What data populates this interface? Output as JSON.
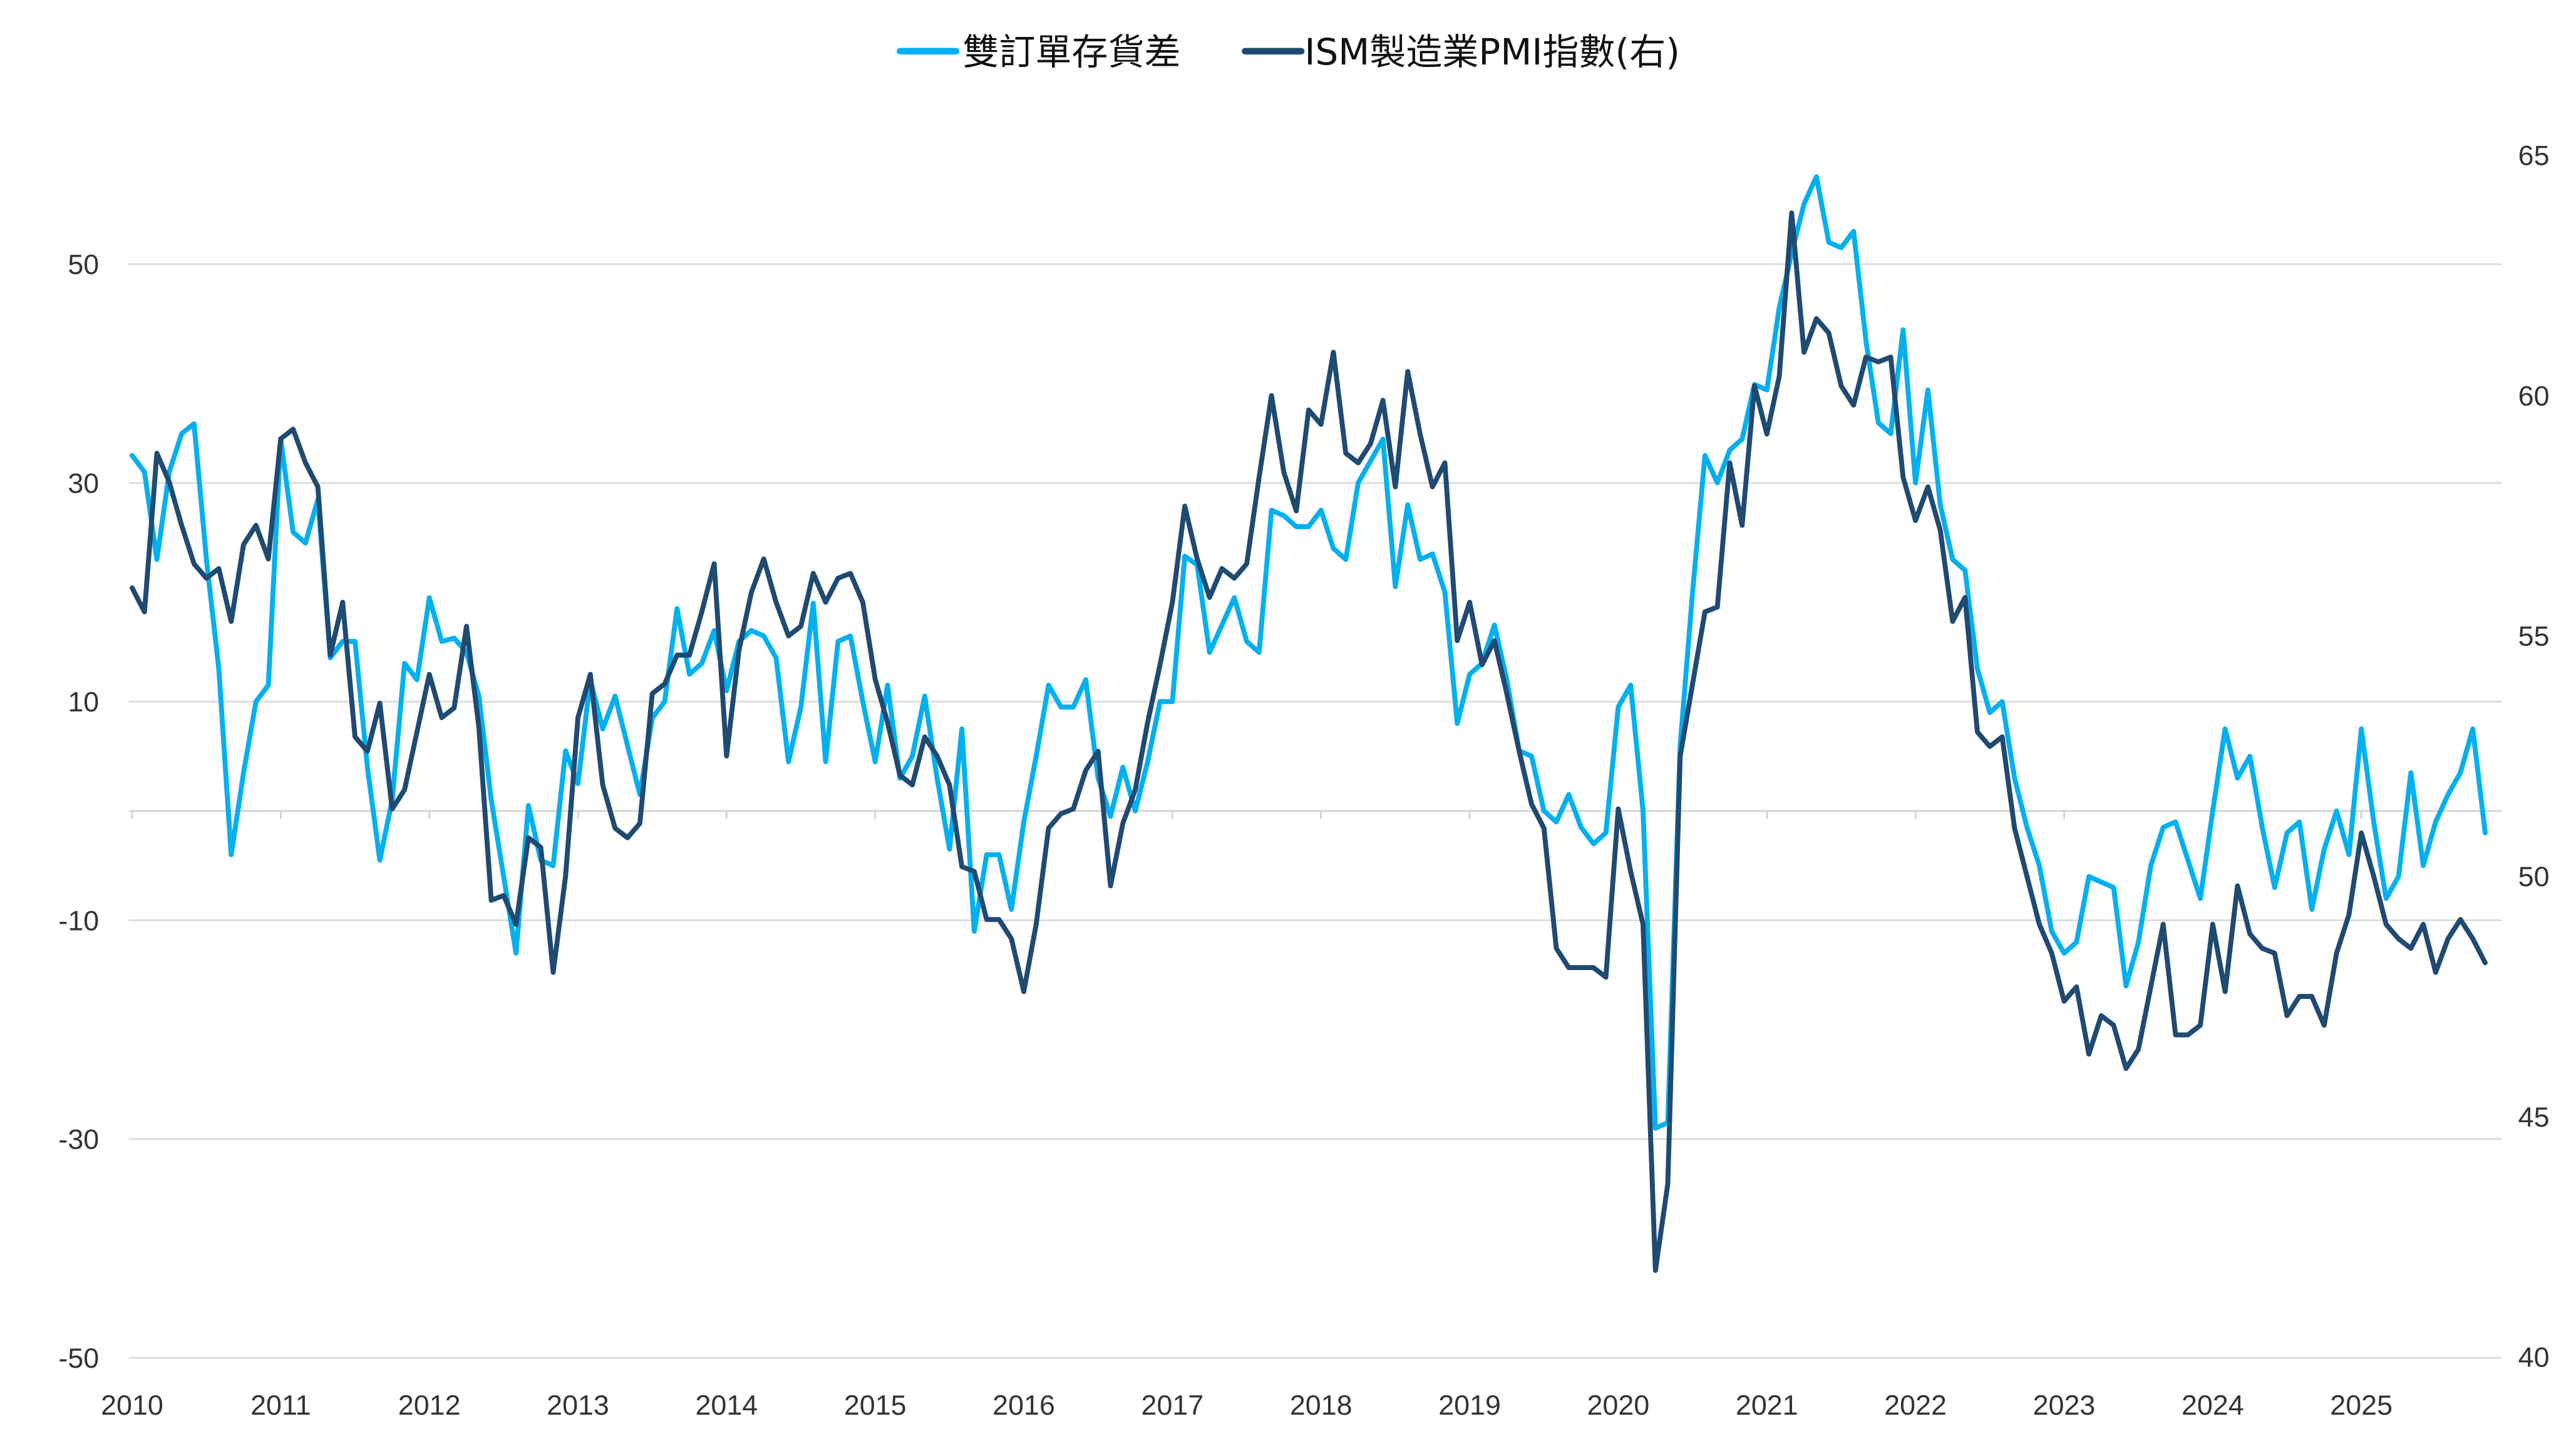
{
  "chart_data": {
    "type": "line",
    "title": "",
    "legend": {
      "placement": "top-center"
    },
    "grid": true,
    "x": {
      "start": "2010-01",
      "frequency": "monthly",
      "tick_labels": [
        "2010",
        "2011",
        "2012",
        "2013",
        "2014",
        "2015",
        "2016",
        "2017",
        "2018",
        "2019",
        "2020",
        "2021",
        "2022",
        "2023",
        "2024",
        "2025"
      ]
    },
    "y_left": {
      "range": [
        -50,
        60
      ],
      "ticks": [
        50,
        30,
        10,
        -10,
        -30,
        -50
      ],
      "tick_labels": [
        "50",
        "30",
        "10",
        "-10",
        "-30",
        "-50"
      ]
    },
    "y_right": {
      "range": [
        40,
        65
      ],
      "ticks": [
        65,
        60,
        55,
        50,
        45,
        40
      ],
      "tick_labels": [
        "65",
        "60",
        "55",
        "50",
        "45",
        "40"
      ]
    },
    "series": [
      {
        "name": "雙訂單存貨差",
        "axis": "left",
        "color": "#00b0f0",
        "values": [
          32.5,
          31,
          23,
          31,
          34.5,
          35.4,
          23,
          13,
          -4,
          3.5,
          10,
          11.5,
          34,
          25.5,
          24.5,
          28.5,
          14,
          15.5,
          15.5,
          4,
          -4.5,
          1,
          13.5,
          12,
          19.5,
          15.5,
          15.8,
          14.5,
          10.5,
          1,
          -6,
          -13,
          0.5,
          -4.5,
          -5,
          5.5,
          2.5,
          12,
          7.5,
          10.5,
          6,
          1.5,
          8.5,
          10,
          18.5,
          12.5,
          13.5,
          16.5,
          11,
          15.5,
          16.5,
          16,
          14,
          4.5,
          9.5,
          19,
          4.5,
          15.5,
          16,
          10,
          4.5,
          11.5,
          3,
          5,
          10.5,
          3,
          -3.5,
          7.5,
          -11,
          -4,
          -4,
          -9,
          -1,
          5,
          11.5,
          9.5,
          9.5,
          12,
          3,
          -0.5,
          4,
          0,
          4.5,
          10,
          10,
          23.3,
          22.5,
          14.5,
          17,
          19.5,
          15.5,
          14.5,
          27.5,
          27,
          26,
          26,
          27.5,
          24,
          23,
          30,
          32,
          34,
          20.5,
          28,
          23,
          23.5,
          20,
          8,
          12.5,
          13.5,
          17,
          12,
          5.5,
          5,
          0,
          -1,
          1.5,
          -1.5,
          -3,
          -2,
          9.5,
          11.5,
          0,
          -29,
          -28.5,
          6,
          20,
          32.5,
          30,
          33,
          34,
          39,
          38.5,
          46,
          51,
          55.5,
          58,
          52,
          51.5,
          53,
          43,
          35.5,
          34.5,
          44,
          30,
          38.5,
          28,
          23,
          22,
          13,
          9,
          10,
          3,
          -1.5,
          -5,
          -11,
          -13,
          -12,
          -6,
          -6.5,
          -7,
          -16,
          -12,
          -5,
          -1.5,
          -1,
          -4.5,
          -8,
          0,
          7.5,
          3,
          5,
          -1.5,
          -7,
          -2,
          -1,
          -9,
          -3.5,
          0,
          -4,
          7.5,
          -1,
          -8,
          -6,
          3.5,
          -5,
          -1,
          1.5,
          3.5,
          7.5,
          -2
        ]
      },
      {
        "name": "ISM製造業PMI指數(右)",
        "axis": "right",
        "color": "#1f4a72",
        "values": [
          56.0,
          55.5,
          58.8,
          58.2,
          57.3,
          56.5,
          56.2,
          56.4,
          55.3,
          56.9,
          57.3,
          56.6,
          59.1,
          59.3,
          58.6,
          58.1,
          54.6,
          55.7,
          52.9,
          52.6,
          53.6,
          51.4,
          51.8,
          53.0,
          54.2,
          53.3,
          53.5,
          55.2,
          53.1,
          49.5,
          49.6,
          49.0,
          50.8,
          50.6,
          48.0,
          50.0,
          53.3,
          54.2,
          51.9,
          51.0,
          50.8,
          51.1,
          53.8,
          54.0,
          54.6,
          54.6,
          55.5,
          56.5,
          52.5,
          54.7,
          55.9,
          56.6,
          55.7,
          55.0,
          55.2,
          56.3,
          55.7,
          56.2,
          56.3,
          55.7,
          54.1,
          53.2,
          52.1,
          51.9,
          52.9,
          52.5,
          51.9,
          50.2,
          50.1,
          49.1,
          49.1,
          48.7,
          47.6,
          49.0,
          51.0,
          51.3,
          51.4,
          52.2,
          52.6,
          49.8,
          51.1,
          51.8,
          53.2,
          54.4,
          55.7,
          57.7,
          56.6,
          55.8,
          56.4,
          56.2,
          56.5,
          58.3,
          60.0,
          58.4,
          57.6,
          59.7,
          59.4,
          60.9,
          58.8,
          58.6,
          59.0,
          59.9,
          58.1,
          60.5,
          59.2,
          58.1,
          58.6,
          54.9,
          55.7,
          54.4,
          54.9,
          53.8,
          52.6,
          51.5,
          51.0,
          48.5,
          48.1,
          48.1,
          48.1,
          47.9,
          51.4,
          50.1,
          49.0,
          41.8,
          43.6,
          52.5,
          54.0,
          55.5,
          55.6,
          58.6,
          57.3,
          60.2,
          59.2,
          60.4,
          63.8,
          60.9,
          61.6,
          61.3,
          60.2,
          59.8,
          60.8,
          60.7,
          60.8,
          58.3,
          57.4,
          58.1,
          57.2,
          55.3,
          55.8,
          53.0,
          52.7,
          52.9,
          51.0,
          50.0,
          49.0,
          48.4,
          47.4,
          47.7,
          46.3,
          47.1,
          46.9,
          46.0,
          46.4,
          47.7,
          49.0,
          46.7,
          46.7,
          46.9,
          49.0,
          47.6,
          49.8,
          48.8,
          48.5,
          48.4,
          47.1,
          47.5,
          47.5,
          46.9,
          48.4,
          49.2,
          50.9,
          50.0,
          49.0,
          48.7,
          48.5,
          49.0,
          48.0,
          48.7,
          49.1,
          48.7,
          48.2
        ]
      }
    ]
  }
}
